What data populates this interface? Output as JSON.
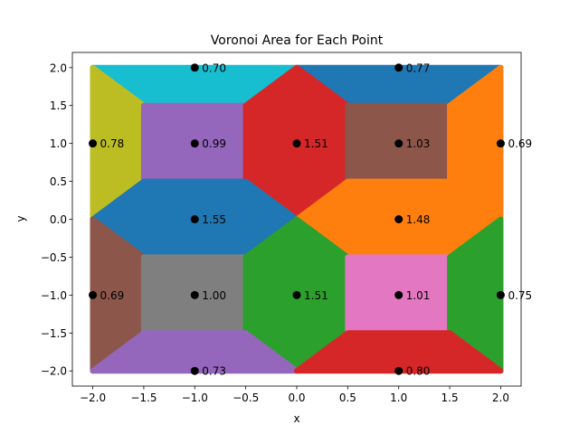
{
  "chart_data": {
    "type": "scatter",
    "title": "Voronoi Area for Each Point",
    "xlabel": "x",
    "ylabel": "y",
    "xlim": [
      -2.2,
      2.2
    ],
    "ylim": [
      -2.2,
      2.2
    ],
    "xticks": [
      -2.0,
      -1.5,
      -1.0,
      -0.5,
      0.0,
      0.5,
      1.0,
      1.5,
      2.0
    ],
    "yticks": [
      -2.0,
      -1.5,
      -1.0,
      -0.5,
      0.0,
      0.5,
      1.0,
      1.5,
      2.0
    ],
    "xtick_labels": [
      "−2.0",
      "−1.5",
      "−1.0",
      "−0.5",
      "0.0",
      "0.5",
      "1.0",
      "1.5",
      "2.0"
    ],
    "ytick_labels": [
      "−2.0",
      "−1.5",
      "−1.0",
      "−0.5",
      "0.0",
      "0.5",
      "1.0",
      "1.5",
      "2.0"
    ],
    "grid": false,
    "legend": "none",
    "points": [
      {
        "x": -1,
        "y": 2,
        "label": "0.70"
      },
      {
        "x": 1,
        "y": 2,
        "label": "0.77"
      },
      {
        "x": -2,
        "y": 1,
        "label": "0.78"
      },
      {
        "x": -1,
        "y": 1,
        "label": "0.99"
      },
      {
        "x": 0,
        "y": 1,
        "label": "1.51"
      },
      {
        "x": 1,
        "y": 1,
        "label": "1.03"
      },
      {
        "x": 2,
        "y": 1,
        "label": "0.69"
      },
      {
        "x": -1,
        "y": 0,
        "label": "1.55"
      },
      {
        "x": 1,
        "y": 0,
        "label": "1.48"
      },
      {
        "x": -2,
        "y": -1,
        "label": "0.69"
      },
      {
        "x": -1,
        "y": -1,
        "label": "1.00"
      },
      {
        "x": 0,
        "y": -1,
        "label": "1.51"
      },
      {
        "x": 1,
        "y": -1,
        "label": "1.01"
      },
      {
        "x": 2,
        "y": -1,
        "label": "0.75"
      },
      {
        "x": -1,
        "y": -2,
        "label": "0.73"
      },
      {
        "x": 1,
        "y": -2,
        "label": "0.80"
      }
    ],
    "regions": [
      {
        "color": "#17becf",
        "polygon": [
          [
            -2,
            2
          ],
          [
            0,
            2
          ],
          [
            -0.5,
            1.5
          ],
          [
            -1.5,
            1.5
          ]
        ]
      },
      {
        "color": "#1f77b4",
        "polygon": [
          [
            0,
            2
          ],
          [
            2,
            2
          ],
          [
            1.5,
            1.5
          ],
          [
            0.5,
            1.5
          ]
        ]
      },
      {
        "color": "#bcbd22",
        "polygon": [
          [
            -2,
            2
          ],
          [
            -1.5,
            1.5
          ],
          [
            -1.5,
            0.5
          ],
          [
            -2,
            0
          ]
        ]
      },
      {
        "color": "#9467bd",
        "polygon": [
          [
            -1.5,
            1.5
          ],
          [
            -0.5,
            1.5
          ],
          [
            -0.5,
            0.5
          ],
          [
            -1.5,
            0.5
          ]
        ]
      },
      {
        "color": "#d62728",
        "polygon": [
          [
            0,
            2
          ],
          [
            0.5,
            1.5
          ],
          [
            0.5,
            0.5
          ],
          [
            0,
            0
          ],
          [
            -0.5,
            0.5
          ],
          [
            -0.5,
            1.5
          ]
        ]
      },
      {
        "color": "#8c564b",
        "polygon": [
          [
            0.5,
            1.5
          ],
          [
            1.5,
            1.5
          ],
          [
            1.5,
            0.5
          ],
          [
            0.5,
            0.5
          ]
        ]
      },
      {
        "color": "#ff7f0e",
        "polygon": [
          [
            2,
            2
          ],
          [
            1.5,
            1.5
          ],
          [
            1.5,
            0.5
          ],
          [
            2,
            0
          ]
        ]
      },
      {
        "color": "#1f77b4",
        "polygon": [
          [
            -2,
            0
          ],
          [
            -1.5,
            0.5
          ],
          [
            -0.5,
            0.5
          ],
          [
            0,
            0
          ],
          [
            -0.5,
            -0.5
          ],
          [
            -1.5,
            -0.5
          ]
        ]
      },
      {
        "color": "#ff7f0e",
        "polygon": [
          [
            0,
            0
          ],
          [
            0.5,
            0.5
          ],
          [
            1.5,
            0.5
          ],
          [
            2,
            0
          ],
          [
            1.5,
            -0.5
          ],
          [
            0.5,
            -0.5
          ]
        ]
      },
      {
        "color": "#8c564b",
        "polygon": [
          [
            -2,
            0
          ],
          [
            -1.5,
            -0.5
          ],
          [
            -1.5,
            -1.5
          ],
          [
            -2,
            -2
          ]
        ]
      },
      {
        "color": "#7f7f7f",
        "polygon": [
          [
            -1.5,
            -0.5
          ],
          [
            -0.5,
            -0.5
          ],
          [
            -0.5,
            -1.5
          ],
          [
            -1.5,
            -1.5
          ]
        ]
      },
      {
        "color": "#2ca02c",
        "polygon": [
          [
            0,
            0
          ],
          [
            0.5,
            -0.5
          ],
          [
            0.5,
            -1.5
          ],
          [
            0,
            -2
          ],
          [
            -0.5,
            -1.5
          ],
          [
            -0.5,
            -0.5
          ]
        ]
      },
      {
        "color": "#e377c2",
        "polygon": [
          [
            0.5,
            -0.5
          ],
          [
            1.5,
            -0.5
          ],
          [
            1.5,
            -1.5
          ],
          [
            0.5,
            -1.5
          ]
        ]
      },
      {
        "color": "#2ca02c",
        "polygon": [
          [
            2,
            0
          ],
          [
            1.5,
            -0.5
          ],
          [
            1.5,
            -1.5
          ],
          [
            2,
            -2
          ]
        ]
      },
      {
        "color": "#9467bd",
        "polygon": [
          [
            -2,
            -2
          ],
          [
            -1.5,
            -1.5
          ],
          [
            -0.5,
            -1.5
          ],
          [
            0,
            -2
          ]
        ]
      },
      {
        "color": "#d62728",
        "polygon": [
          [
            0,
            -2
          ],
          [
            0.5,
            -1.5
          ],
          [
            1.5,
            -1.5
          ],
          [
            2,
            -2
          ]
        ]
      }
    ]
  }
}
